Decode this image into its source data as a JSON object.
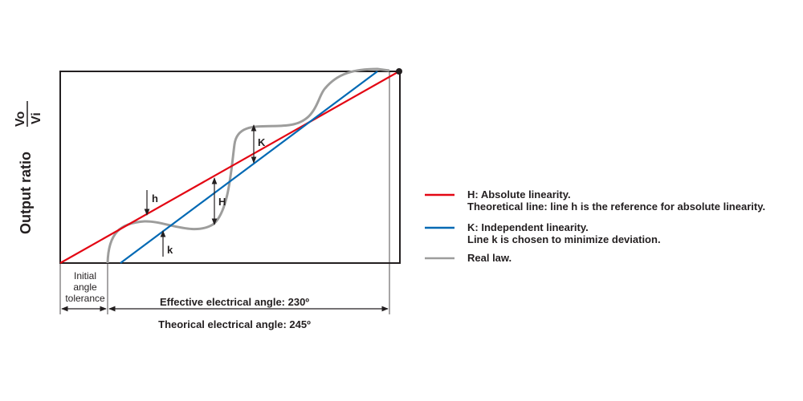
{
  "axis": {
    "ylabel": "Output ratio",
    "ratio_numerator": "Vo",
    "ratio_denominator": "Vi"
  },
  "labels": {
    "h": "h",
    "k": "k",
    "H": "H",
    "K": "K",
    "initial_angle_tolerance": [
      "Initial",
      "angle",
      "tolerance"
    ],
    "effective_angle": "Effective electrical angle: 230º",
    "theoretical_angle": "Theorical electrical angle: 245º"
  },
  "legend": [
    {
      "color": "#e30613",
      "lines": [
        "H: Absolute linearity.",
        "Theoretical line: line h is the reference for absolute linearity."
      ]
    },
    {
      "color": "#0069b4",
      "lines": [
        "K: Independent linearity.",
        "Line k is chosen to minimize deviation."
      ]
    },
    {
      "color": "#9d9d9c",
      "lines": [
        "Real law."
      ]
    }
  ],
  "colors": {
    "absolute_line": "#e30613",
    "independent_line": "#0069b4",
    "real_law": "#9d9d9c",
    "frame": "#231f20"
  }
}
